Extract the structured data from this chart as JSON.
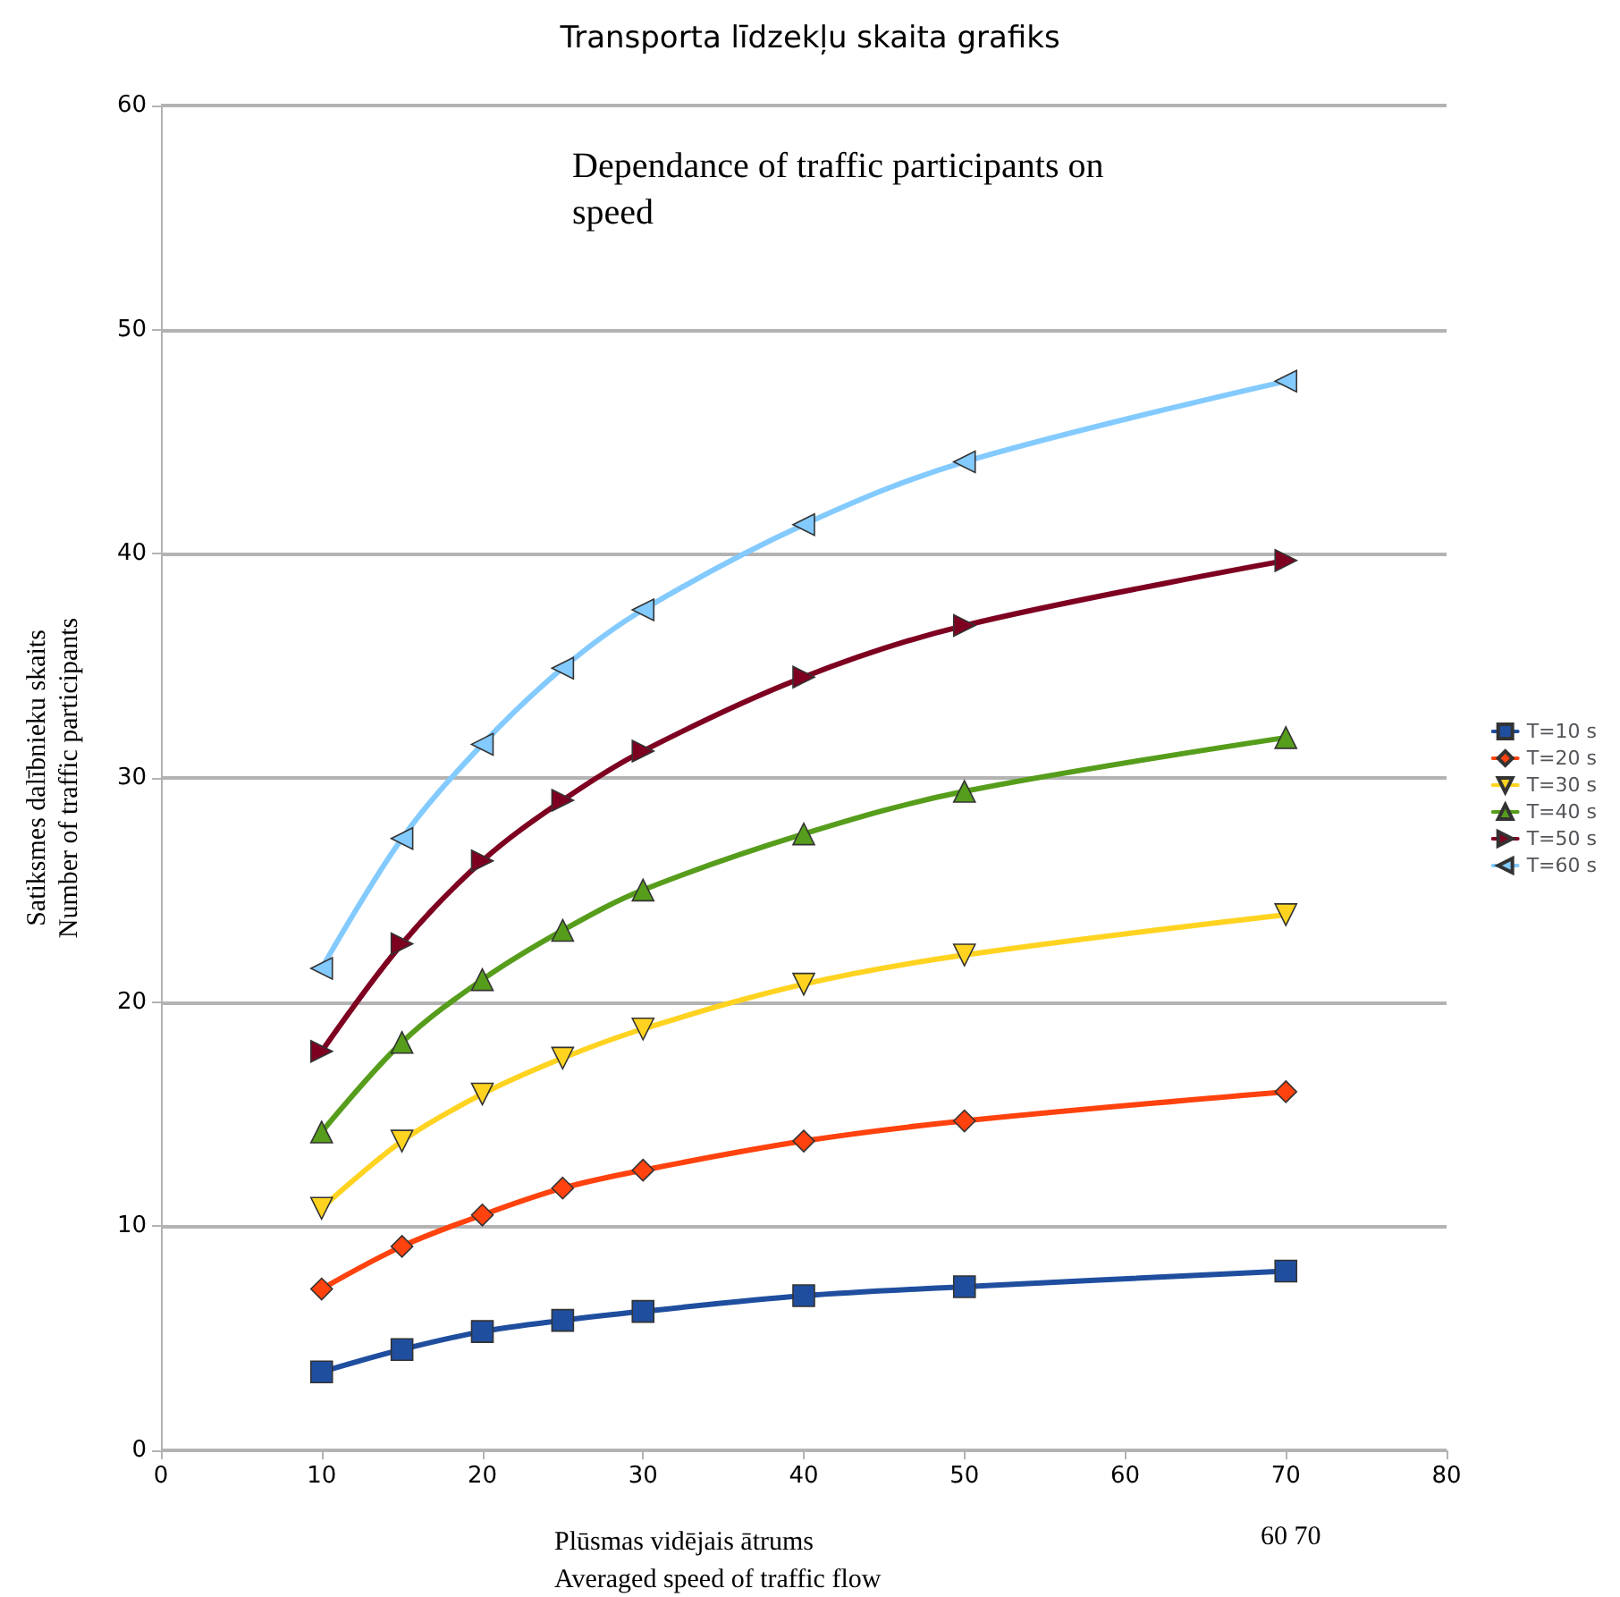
{
  "chart_data": {
    "type": "line",
    "title": "Transporta līdzekļu skaita grafiks",
    "xlabel": "Plūsmas vidējais ātrums\nAveraged speed of traffic flow",
    "ylabel": "Satiksmes dalībnieku skaits\nNumber of traffic participants",
    "annotations": [
      "Dependance of traffic participants on\nspeed",
      "60 70"
    ],
    "x": [
      10,
      15,
      20,
      25,
      30,
      40,
      50,
      70
    ],
    "series": [
      {
        "name": "T=10 s",
        "color": "#1f4e9f",
        "marker": "square",
        "values": [
          3.5,
          4.5,
          5.3,
          5.8,
          6.2,
          6.9,
          7.3,
          8.0
        ]
      },
      {
        "name": "T=20 s",
        "color": "#ff420e",
        "marker": "diamond",
        "values": [
          7.2,
          9.1,
          10.5,
          11.7,
          12.5,
          13.8,
          14.7,
          16.0
        ]
      },
      {
        "name": "T=30 s",
        "color": "#ffd320",
        "marker": "triangle-down",
        "values": [
          10.8,
          13.8,
          15.9,
          17.5,
          18.8,
          20.8,
          22.1,
          23.9
        ]
      },
      {
        "name": "T=40 s",
        "color": "#579d1c",
        "marker": "triangle",
        "values": [
          14.2,
          18.2,
          21.0,
          23.2,
          25.0,
          27.5,
          29.4,
          31.8
        ]
      },
      {
        "name": "T=50 s",
        "color": "#7e0021",
        "marker": "triangle-right",
        "values": [
          17.8,
          22.6,
          26.3,
          29.0,
          31.2,
          34.5,
          36.8,
          39.7
        ]
      },
      {
        "name": "T=60 s",
        "color": "#83caff",
        "marker": "triangle-left",
        "values": [
          21.5,
          27.3,
          31.5,
          34.9,
          37.5,
          41.3,
          44.1,
          47.7
        ]
      }
    ],
    "xlim": [
      0,
      80
    ],
    "xticks": [
      0,
      10,
      20,
      30,
      40,
      50,
      60,
      70,
      80
    ],
    "ylim": [
      0,
      60
    ],
    "yticks": [
      0,
      10,
      20,
      30,
      40,
      50,
      60
    ],
    "grid": "y",
    "legend": "right",
    "line_style": "solid"
  }
}
